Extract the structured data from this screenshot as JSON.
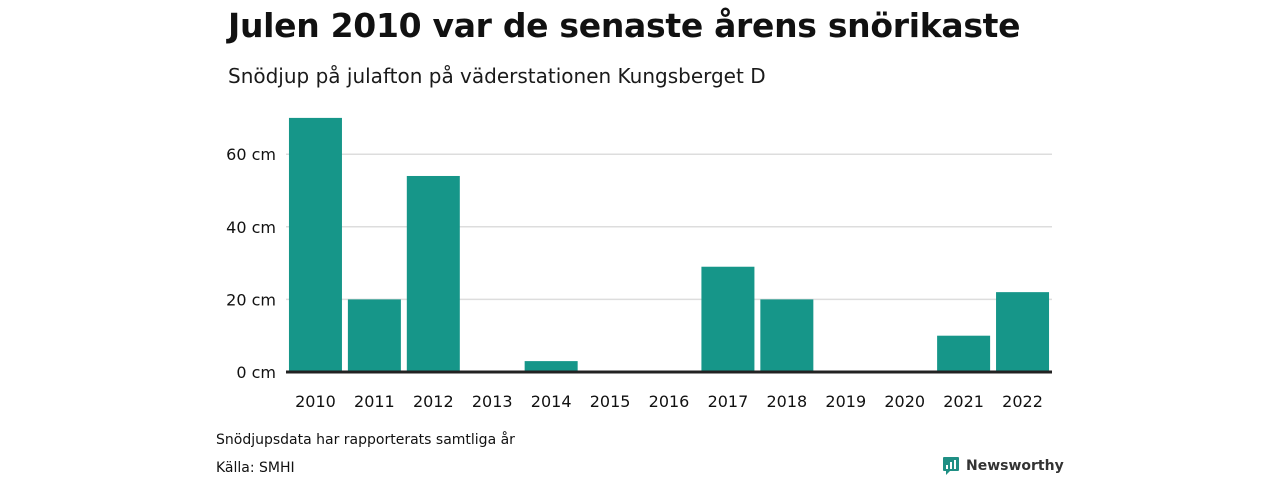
{
  "header": {
    "title": "Julen 2010 var de senaste årens snörikaste",
    "subtitle": "Snödjup på julafton på väderstationen Kungsberget D"
  },
  "footer": {
    "note": "Snödjupsdata har rapporterats samtliga år",
    "source": "Källa: SMHI",
    "brand": "Newsworthy",
    "brand_icon": "newsworthy-logo-icon"
  },
  "colors": {
    "bar": "#169689",
    "grid": "#dddddd",
    "baseline": "#222222",
    "brand": "#1f8f84"
  },
  "chart_data": {
    "type": "bar",
    "title": "Julen 2010 var de senaste årens snörikaste",
    "subtitle": "Snödjup på julafton på väderstationen Kungsberget D",
    "xlabel": "",
    "ylabel": "",
    "categories": [
      "2010",
      "2011",
      "2012",
      "2013",
      "2014",
      "2015",
      "2016",
      "2017",
      "2018",
      "2019",
      "2020",
      "2021",
      "2022"
    ],
    "values": [
      70,
      20,
      54,
      0,
      3,
      0,
      0,
      29,
      20,
      0,
      0,
      10,
      22
    ],
    "unit": "cm",
    "ylim": [
      0,
      70
    ],
    "yticks": [
      0,
      20,
      40,
      60
    ],
    "ytick_labels": [
      "0 cm",
      "20 cm",
      "40 cm",
      "60 cm"
    ],
    "grid": true,
    "legend": "none"
  }
}
